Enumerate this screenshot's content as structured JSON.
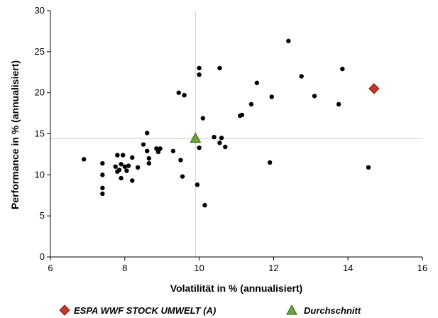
{
  "chart_data": {
    "type": "scatter",
    "title": "",
    "xlabel": "Volatilität in % (annualisiert)",
    "ylabel": "Performance in % (annualisiert)",
    "xlim": [
      6,
      16
    ],
    "ylim": [
      0,
      30
    ],
    "xticks": [
      6,
      8,
      10,
      12,
      14,
      16
    ],
    "yticks": [
      0,
      5,
      10,
      15,
      20,
      25,
      30
    ],
    "grid": false,
    "legend_placement": "bottom",
    "reference_lines": {
      "x": 9.9,
      "y": 14.4
    },
    "series": [
      {
        "name": "",
        "marker": "circle",
        "color": "#000000",
        "points": [
          [
            6.9,
            11.9
          ],
          [
            7.4,
            11.4
          ],
          [
            7.4,
            10.0
          ],
          [
            7.4,
            8.4
          ],
          [
            7.4,
            7.7
          ],
          [
            7.75,
            11.0
          ],
          [
            7.8,
            12.4
          ],
          [
            7.8,
            10.4
          ],
          [
            7.85,
            10.6
          ],
          [
            7.9,
            11.3
          ],
          [
            7.95,
            12.4
          ],
          [
            7.9,
            9.6
          ],
          [
            8.0,
            11.0
          ],
          [
            8.05,
            10.5
          ],
          [
            8.1,
            11.1
          ],
          [
            8.2,
            9.3
          ],
          [
            8.2,
            12.1
          ],
          [
            8.35,
            10.9
          ],
          [
            8.5,
            13.7
          ],
          [
            8.6,
            15.1
          ],
          [
            8.6,
            12.9
          ],
          [
            8.65,
            12.0
          ],
          [
            8.65,
            11.4
          ],
          [
            8.85,
            13.2
          ],
          [
            8.9,
            12.8
          ],
          [
            8.95,
            13.2
          ],
          [
            9.3,
            12.9
          ],
          [
            9.45,
            20.0
          ],
          [
            9.5,
            11.8
          ],
          [
            9.55,
            9.8
          ],
          [
            9.6,
            19.7
          ],
          [
            9.95,
            8.8
          ],
          [
            10.0,
            13.3
          ],
          [
            10.0,
            23.0
          ],
          [
            10.0,
            22.2
          ],
          [
            10.1,
            16.9
          ],
          [
            10.15,
            6.3
          ],
          [
            10.4,
            14.6
          ],
          [
            10.55,
            23.0
          ],
          [
            10.55,
            13.9
          ],
          [
            10.6,
            14.5
          ],
          [
            10.7,
            13.4
          ],
          [
            11.1,
            17.2
          ],
          [
            11.15,
            17.3
          ],
          [
            11.4,
            18.6
          ],
          [
            11.55,
            21.2
          ],
          [
            11.9,
            11.5
          ],
          [
            11.95,
            19.5
          ],
          [
            12.4,
            26.3
          ],
          [
            12.75,
            22.0
          ],
          [
            13.1,
            19.6
          ],
          [
            13.75,
            18.6
          ],
          [
            13.85,
            22.9
          ],
          [
            14.55,
            10.9
          ]
        ]
      },
      {
        "name": "ESPA WWF STOCK UMWELT (A)",
        "marker": "diamond",
        "color": "#c0392b",
        "points": [
          [
            14.7,
            20.5
          ]
        ]
      },
      {
        "name": "Durchschnitt",
        "marker": "triangle",
        "color": "#4e8a2e",
        "points": [
          [
            9.9,
            14.4
          ]
        ]
      }
    ]
  }
}
